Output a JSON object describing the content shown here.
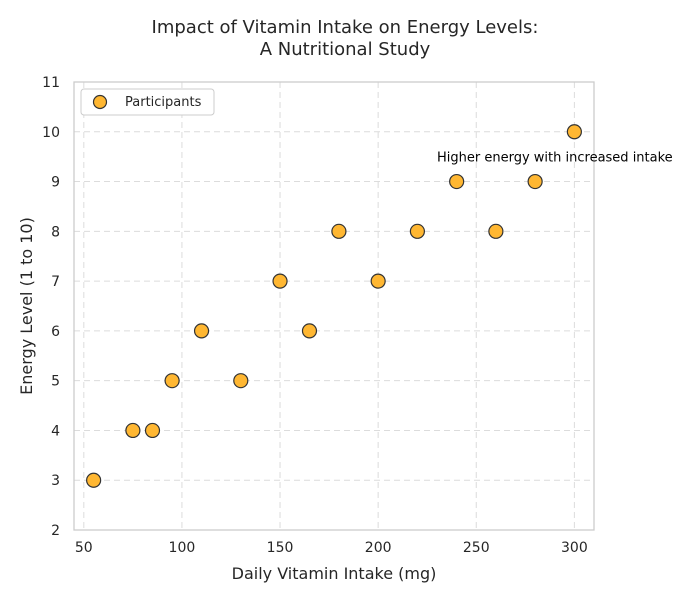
{
  "chart_data": {
    "type": "scatter",
    "title_lines": [
      "Impact of Vitamin Intake on Energy Levels:",
      "A Nutritional Study"
    ],
    "xlabel": "Daily Vitamin Intake (mg)",
    "ylabel": "Energy Level (1 to 10)",
    "xlim": [
      45,
      310
    ],
    "ylim": [
      2,
      11
    ],
    "xticks": [
      50,
      100,
      150,
      200,
      250,
      300
    ],
    "yticks": [
      2,
      3,
      4,
      5,
      6,
      7,
      8,
      9,
      10,
      11
    ],
    "grid": true,
    "legend": {
      "position": "top-left",
      "entries": [
        "Participants"
      ]
    },
    "series": [
      {
        "name": "Participants",
        "color": "#ffb732",
        "edge_color": "#333333",
        "x": [
          55,
          75,
          85,
          95,
          110,
          130,
          150,
          165,
          180,
          200,
          220,
          240,
          260,
          280,
          300
        ],
        "y": [
          3,
          4,
          4,
          5,
          6,
          5,
          7,
          6,
          8,
          7,
          8,
          9,
          8,
          9,
          10
        ]
      }
    ],
    "annotations": [
      {
        "text": "Higher energy with increased intake",
        "x": 230,
        "y": 9.5
      }
    ]
  }
}
